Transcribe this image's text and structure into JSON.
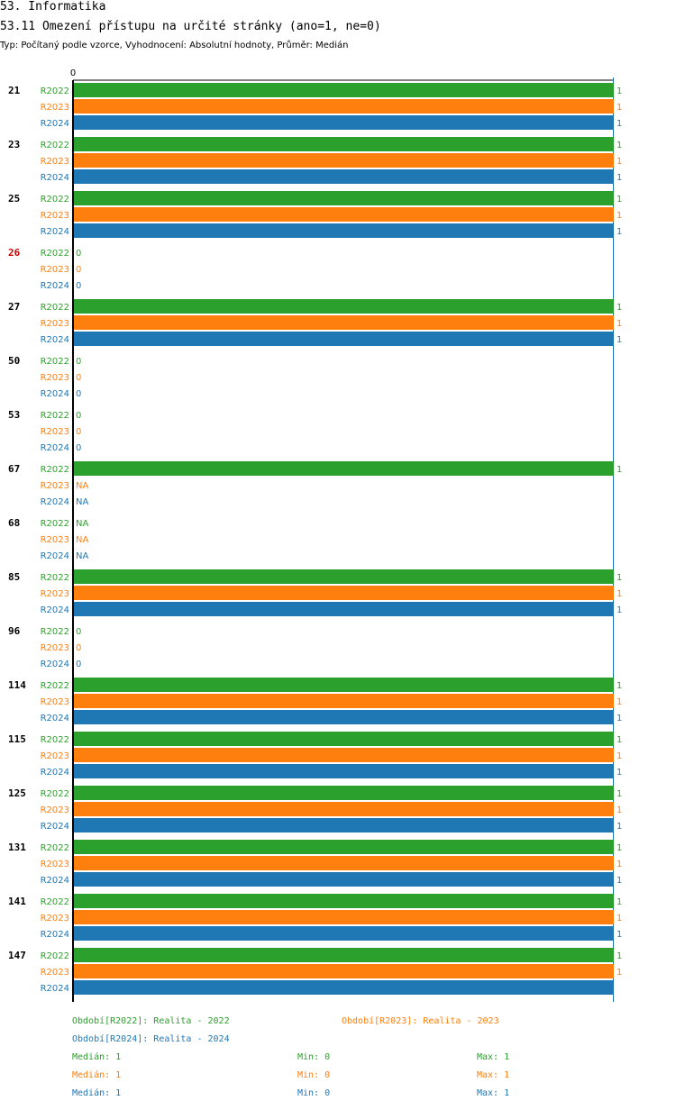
{
  "header": {
    "title": "53. Informatika",
    "subtitle": "53.11 Omezení přístupu na určité stránky (ano=1, ne=0)",
    "meta": "Typ: Počítaný podle vzorce, Vyhodnocení: Absolutní hodnoty, Průměr: Medián"
  },
  "chart_data": {
    "type": "bar",
    "orientation": "horizontal",
    "axis_tick_label": "0",
    "xlim": [
      0,
      1
    ],
    "categories": [
      "21",
      "23",
      "25",
      "26",
      "27",
      "50",
      "53",
      "67",
      "68",
      "85",
      "96",
      "114",
      "115",
      "125",
      "131",
      "141",
      "147"
    ],
    "highlighted_categories": [
      "26"
    ],
    "series": [
      {
        "name": "R2022",
        "color": "#2ca02c",
        "values": [
          1,
          1,
          1,
          0,
          1,
          0,
          0,
          1,
          "NA",
          1,
          0,
          1,
          1,
          1,
          1,
          1,
          1
        ],
        "labels": [
          "1",
          "1",
          "1",
          "0",
          "1",
          "0",
          "0",
          "1",
          "NA",
          "1",
          "0",
          "1",
          "1",
          "1",
          "1",
          "1",
          "1"
        ]
      },
      {
        "name": "R2023",
        "color": "#ff7f0e",
        "values": [
          1,
          1,
          1,
          0,
          1,
          0,
          0,
          "NA",
          "NA",
          1,
          0,
          1,
          1,
          1,
          1,
          1,
          1
        ],
        "labels": [
          "1",
          "1",
          "1",
          "0",
          "1",
          "0",
          "0",
          "NA",
          "NA",
          "1",
          "0",
          "1",
          "1",
          "1",
          "1",
          "1",
          "1"
        ]
      },
      {
        "name": "R2024",
        "color": "#1f77b4",
        "values": [
          1,
          1,
          1,
          0,
          1,
          0,
          0,
          "NA",
          "NA",
          1,
          0,
          1,
          1,
          1,
          1,
          1,
          1
        ],
        "labels": [
          "1",
          "1",
          "1",
          "0",
          "1",
          "0",
          "0",
          "NA",
          "NA",
          "1",
          "0",
          "1",
          "1",
          "1",
          "1",
          "1",
          ""
        ]
      }
    ]
  },
  "legend": {
    "period_2022": "Období[R2022]: Realita - 2022",
    "period_2023": "Období[R2023]: Realita - 2023",
    "period_2024": "Období[R2024]: Realita - 2024",
    "stats": [
      {
        "median": "Medián: 1",
        "min": "Min: 0",
        "max": "Max: 1"
      },
      {
        "median": "Medián: 1",
        "min": "Min: 0",
        "max": "Max: 1"
      },
      {
        "median": "Medián: 1",
        "min": "Min: 0",
        "max": "Max: 1"
      }
    ]
  },
  "colors": {
    "R2022": "#2ca02c",
    "R2023": "#ff7f0e",
    "R2024": "#1f77b4",
    "highlight": "#cc0000",
    "text": "#000000"
  }
}
